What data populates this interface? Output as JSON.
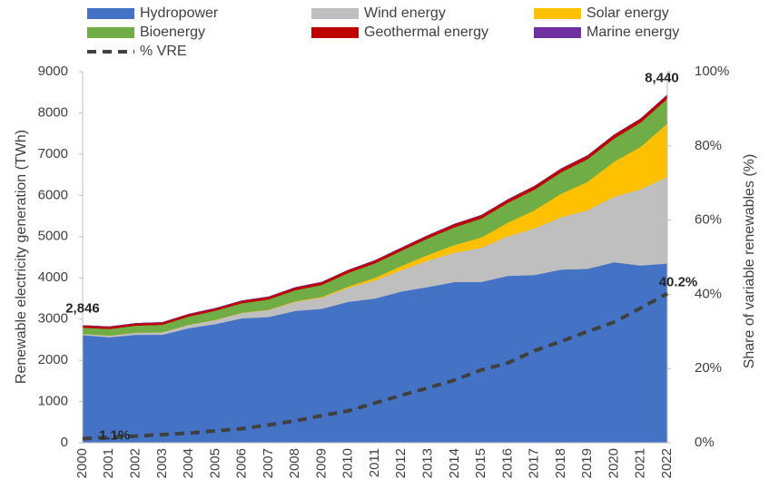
{
  "chart_data": {
    "type": "area",
    "stacked": true,
    "x_label": null,
    "y_label": "Renewable electricity generation (TWh)",
    "y2_label": "Share of variable renewables (%)",
    "categories": [
      "2000",
      "2001",
      "2002",
      "2003",
      "2004",
      "2005",
      "2006",
      "2007",
      "2008",
      "2009",
      "2010",
      "2011",
      "2012",
      "2013",
      "2014",
      "2015",
      "2016",
      "2017",
      "2018",
      "2019",
      "2020",
      "2021",
      "2022"
    ],
    "series": [
      {
        "name": "Hydropower",
        "color": "#4472c4",
        "axis": "y",
        "values": [
          2612,
          2560,
          2620,
          2620,
          2780,
          2880,
          3020,
          3050,
          3200,
          3250,
          3420,
          3500,
          3670,
          3780,
          3900,
          3900,
          4050,
          4070,
          4200,
          4220,
          4380,
          4300,
          4350
        ]
      },
      {
        "name": "Wind energy",
        "color": "#bfbfbf",
        "axis": "y",
        "values": [
          30,
          40,
          50,
          60,
          80,
          100,
          130,
          170,
          220,
          270,
          340,
          440,
          520,
          640,
          710,
          830,
          960,
          1130,
          1270,
          1420,
          1590,
          1850,
          2100
        ]
      },
      {
        "name": "Solar energy",
        "color": "#ffc000",
        "axis": "y",
        "values": [
          1,
          1,
          2,
          3,
          4,
          5,
          6,
          8,
          12,
          20,
          32,
          63,
          100,
          140,
          190,
          250,
          330,
          440,
          570,
          690,
          850,
          1030,
          1290
        ]
      },
      {
        "name": "Bioenergy",
        "color": "#70ad47",
        "axis": "y",
        "values": [
          150,
          160,
          170,
          180,
          200,
          220,
          230,
          250,
          270,
          290,
          330,
          350,
          370,
          400,
          430,
          460,
          480,
          500,
          520,
          550,
          560,
          590,
          604
        ]
      },
      {
        "name": "Geothermal energy",
        "color": "#c00000",
        "axis": "y",
        "values": [
          52,
          53,
          54,
          56,
          57,
          58,
          60,
          62,
          64,
          66,
          68,
          69,
          70,
          72,
          76,
          78,
          80,
          84,
          86,
          88,
          90,
          92,
          95
        ]
      },
      {
        "name": "Marine energy",
        "color": "#7030a0",
        "axis": "y",
        "values": [
          1,
          1,
          1,
          1,
          1,
          1,
          1,
          1,
          1,
          1,
          1,
          1,
          1,
          1,
          1,
          1,
          1,
          1,
          1,
          1,
          1,
          1,
          1
        ]
      },
      {
        "name": "% VRE",
        "color": "#404040",
        "axis": "y2",
        "type": "line",
        "dashed": true,
        "values": [
          1.1,
          1.5,
          1.8,
          2.2,
          2.6,
          3.2,
          3.8,
          4.8,
          5.9,
          7.3,
          8.6,
          10.7,
          12.8,
          14.8,
          16.9,
          19.6,
          21.5,
          24.8,
          27.3,
          30.0,
          32.5,
          36.3,
          40.2
        ],
        "value_labels": [
          "1.1%",
          null,
          null,
          null,
          null,
          null,
          null,
          null,
          null,
          null,
          null,
          null,
          null,
          null,
          null,
          null,
          null,
          null,
          null,
          null,
          null,
          null,
          "40.2%"
        ]
      }
    ],
    "total_labels": [
      {
        "category": "2000",
        "value": 2846,
        "label": "2,846"
      },
      {
        "category": "2022",
        "value": 8440,
        "label": "8,440"
      }
    ],
    "ylim": [
      0,
      9000
    ],
    "yticks": [
      0,
      1000,
      2000,
      3000,
      4000,
      5000,
      6000,
      7000,
      8000,
      9000
    ],
    "y2lim": [
      0,
      100
    ],
    "y2ticks": [
      {
        "value": 0,
        "label": "0%"
      },
      {
        "value": 20,
        "label": "20%"
      },
      {
        "value": 40,
        "label": "40%"
      },
      {
        "value": 60,
        "label": "60%"
      },
      {
        "value": 80,
        "label": "80%"
      },
      {
        "value": 100,
        "label": "100%"
      }
    ],
    "legend": "top",
    "grid": false
  }
}
